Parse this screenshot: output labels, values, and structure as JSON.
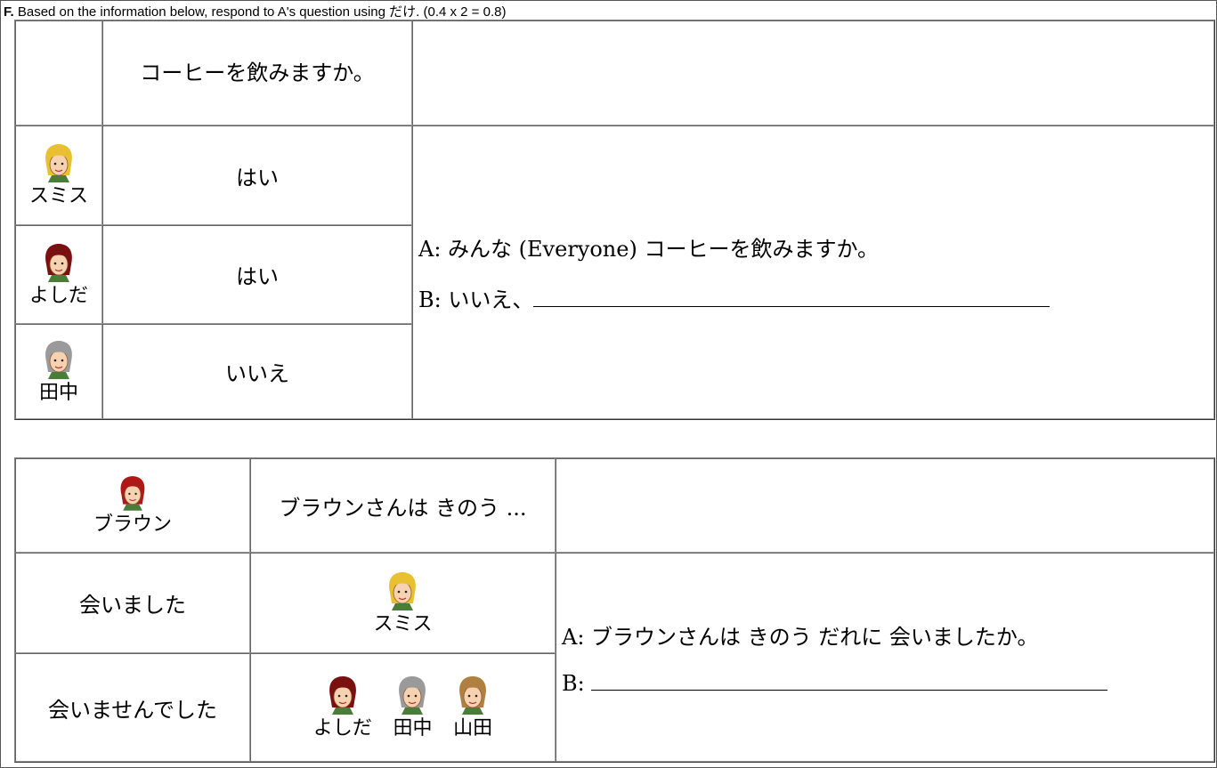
{
  "header": {
    "label": "F.",
    "instruction": "Based on the information below, respond to A's question using だけ. (0.4 x 2 = 0.8)"
  },
  "table1": {
    "question": "コーヒーを飲みますか。",
    "rows": [
      {
        "name": "スミス",
        "answer": "はい"
      },
      {
        "name": "よしだ",
        "answer": "はい"
      },
      {
        "name": "田中",
        "answer": "いいえ"
      }
    ],
    "dialogue": {
      "a": "A: みんな (Everyone) コーヒーを飲みますか。",
      "b": "B: いいえ、"
    }
  },
  "table2": {
    "subject": "ブラウン",
    "question": "ブラウンさんは きのう ...",
    "rows": [
      {
        "verb": "会いました",
        "names": [
          "スミス"
        ]
      },
      {
        "verb": "会いませんでした",
        "names": [
          "よしだ",
          "田中",
          "山田"
        ]
      }
    ],
    "dialogue": {
      "a": "A: ブラウンさんは きのう だれに 会いましたか。",
      "b": "B: "
    }
  }
}
